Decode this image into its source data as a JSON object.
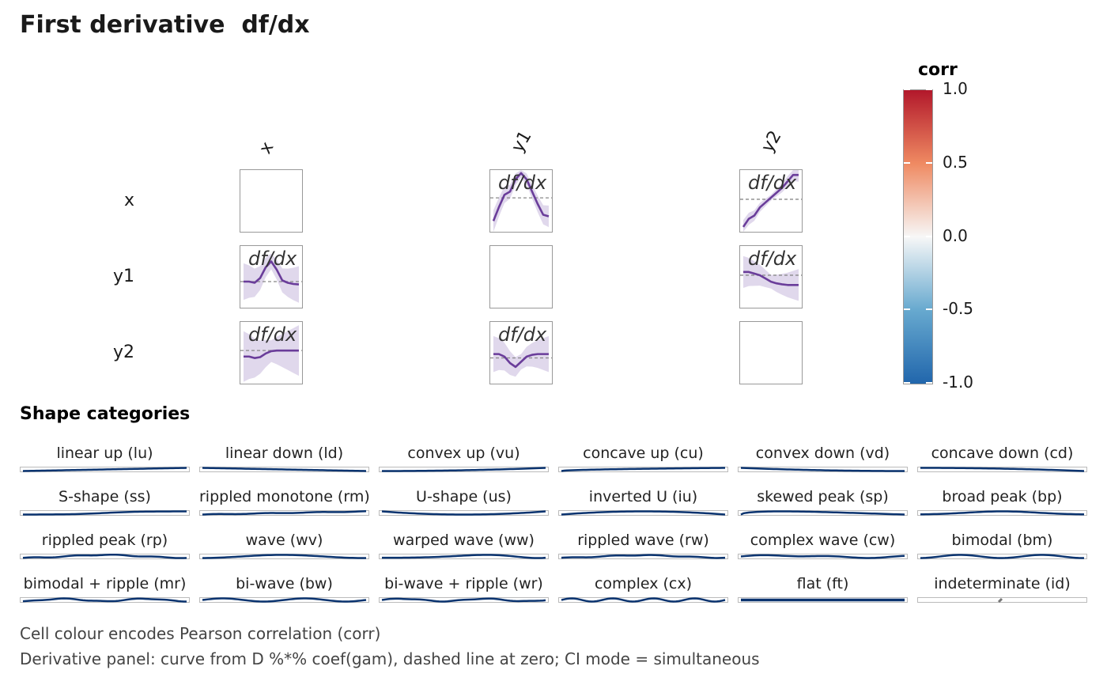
{
  "title": "First derivative  df/dx",
  "chart_data": {
    "type": "matrix-of-line-panels",
    "variables": [
      "x",
      "y1",
      "y2"
    ],
    "panel_label": "df/dx",
    "zero_line": "dashed",
    "panels": [
      {
        "row": "x",
        "col": "y1",
        "ylim": [
          -1.1,
          0.9
        ],
        "ci": 0.25,
        "values": [
          -0.75,
          -0.3,
          0.1,
          0.2,
          0.6,
          0.8,
          0.6,
          0.2,
          -0.2,
          -0.55,
          -0.6
        ]
      },
      {
        "row": "x",
        "col": "y2",
        "ylim": [
          -1.0,
          0.9
        ],
        "ci": 0.15,
        "values": [
          -0.85,
          -0.6,
          -0.5,
          -0.25,
          -0.1,
          0.05,
          0.2,
          0.35,
          0.55,
          0.75,
          0.75
        ]
      },
      {
        "row": "y1",
        "col": "x",
        "ylim": [
          -1.1,
          1.5
        ],
        "ci": 0.55,
        "values": [
          0,
          0,
          -0.05,
          0.15,
          0.6,
          0.85,
          0.5,
          0.05,
          -0.05,
          -0.1,
          -0.12
        ]
      },
      {
        "row": "y1",
        "col": "y2",
        "ylim": [
          -1.0,
          0.9
        ],
        "ci": 0.35,
        "values": [
          0.1,
          0.1,
          0.05,
          0,
          -0.1,
          -0.2,
          -0.25,
          -0.28,
          -0.3,
          -0.3,
          -0.3
        ]
      },
      {
        "row": "y2",
        "col": "x",
        "ylim": [
          -1.1,
          0.95
        ],
        "ci": 0.6,
        "values": [
          -0.2,
          -0.2,
          -0.25,
          -0.22,
          -0.1,
          -0.02,
          0,
          0,
          0,
          0,
          0
        ]
      },
      {
        "row": "y2",
        "col": "y1",
        "ylim": [
          -1.0,
          1.4
        ],
        "ci": 0.5,
        "values": [
          0.15,
          0.15,
          0.05,
          -0.2,
          -0.35,
          -0.15,
          0.05,
          0.12,
          0.15,
          0.15,
          0.15
        ]
      }
    ],
    "legend": {
      "title": "corr",
      "ticks": [
        "1.0",
        "0.5",
        "0.0",
        "-0.5",
        "-1.0"
      ],
      "range": [
        -1,
        1
      ],
      "placement": "right"
    },
    "colors": {
      "curve": "#6a3d9a",
      "ci": "#e0d8ec",
      "zero": "#888888",
      "low": "#2166ac",
      "mid": "#f7f7f7",
      "high": "#b2182b",
      "shape": "#0b3470"
    }
  },
  "shapes_heading": "Shape categories",
  "shapes": [
    {
      "label": "linear up (lu)",
      "code": "lu"
    },
    {
      "label": "linear down (ld)",
      "code": "ld"
    },
    {
      "label": "convex up (vu)",
      "code": "vu"
    },
    {
      "label": "concave up (cu)",
      "code": "cu"
    },
    {
      "label": "convex down (vd)",
      "code": "vd"
    },
    {
      "label": "concave down (cd)",
      "code": "cd"
    },
    {
      "label": "S-shape (ss)",
      "code": "ss"
    },
    {
      "label": "rippled monotone (rm)",
      "code": "rm"
    },
    {
      "label": "U-shape (us)",
      "code": "us"
    },
    {
      "label": "inverted U (iu)",
      "code": "iu"
    },
    {
      "label": "skewed peak (sp)",
      "code": "sp"
    },
    {
      "label": "broad peak (bp)",
      "code": "bp"
    },
    {
      "label": "rippled peak (rp)",
      "code": "rp"
    },
    {
      "label": "wave (wv)",
      "code": "wv"
    },
    {
      "label": "warped wave (ww)",
      "code": "ww"
    },
    {
      "label": "rippled wave (rw)",
      "code": "rw"
    },
    {
      "label": "complex wave (cw)",
      "code": "cw"
    },
    {
      "label": "bimodal (bm)",
      "code": "bm"
    },
    {
      "label": "bimodal + ripple (mr)",
      "code": "mr"
    },
    {
      "label": "bi-wave (bw)",
      "code": "bw"
    },
    {
      "label": "bi-wave + ripple (wr)",
      "code": "wr"
    },
    {
      "label": "complex (cx)",
      "code": "cx"
    },
    {
      "label": "flat (ft)",
      "code": "ft"
    },
    {
      "label": "indeterminate (id)",
      "code": "id"
    }
  ],
  "captions": [
    "Cell colour encodes Pearson correlation (corr)",
    "Derivative panel: curve from D %*% coef(gam), dashed line at zero; CI mode = simultaneous"
  ]
}
